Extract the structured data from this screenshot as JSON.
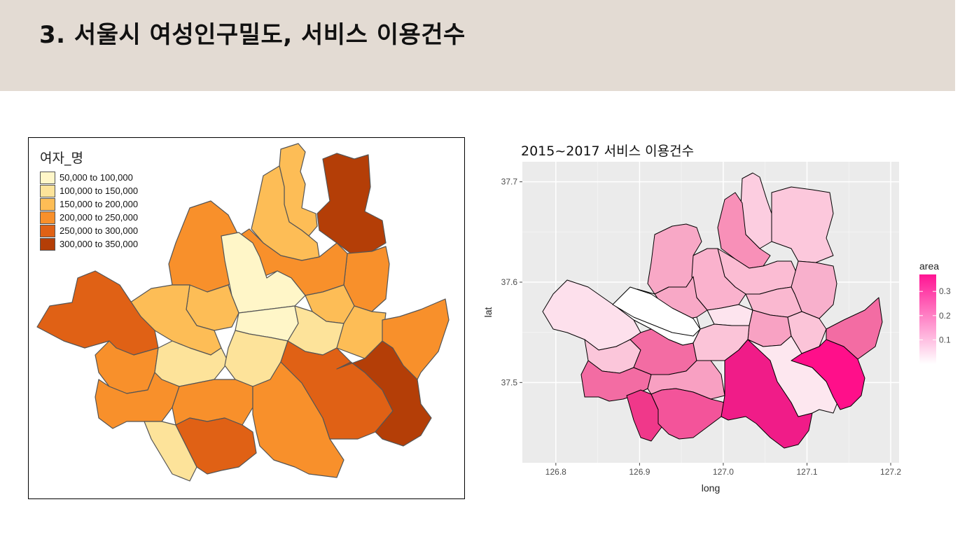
{
  "slide": {
    "title": "3. 서울시 여성인구밀도, 서비스 이용건수"
  },
  "left_map": {
    "legend_title": "여자_명",
    "legend": [
      {
        "label": "50,000 to 100,000",
        "color": "#fff6c8"
      },
      {
        "label": "100,000 to 150,000",
        "color": "#fde39a"
      },
      {
        "label": "150,000 to 200,000",
        "color": "#fdbd56"
      },
      {
        "label": "200,000 to 250,000",
        "color": "#f8902b"
      },
      {
        "label": "250,000 to 300,000",
        "color": "#e06115"
      },
      {
        "label": "300,000 to 350,000",
        "color": "#b43e07"
      }
    ]
  },
  "chart_data": {
    "type": "heatmap",
    "title": "2015~2017 서비스 이용건수",
    "xlabel": "long",
    "ylabel": "lat",
    "x_ticks": [
      "126.8",
      "126.9",
      "127.0",
      "127.1",
      "127.2"
    ],
    "y_ticks": [
      "37.5",
      "37.6",
      "37.7"
    ],
    "xlim": [
      126.76,
      127.21
    ],
    "ylim": [
      37.42,
      37.72
    ],
    "legend_title": "area",
    "legend_ticks": [
      "0.1",
      "0.2",
      "0.3"
    ],
    "color_low": "#ffffff",
    "color_high": "#ff1493",
    "legend_range": [
      0,
      0.37
    ]
  }
}
